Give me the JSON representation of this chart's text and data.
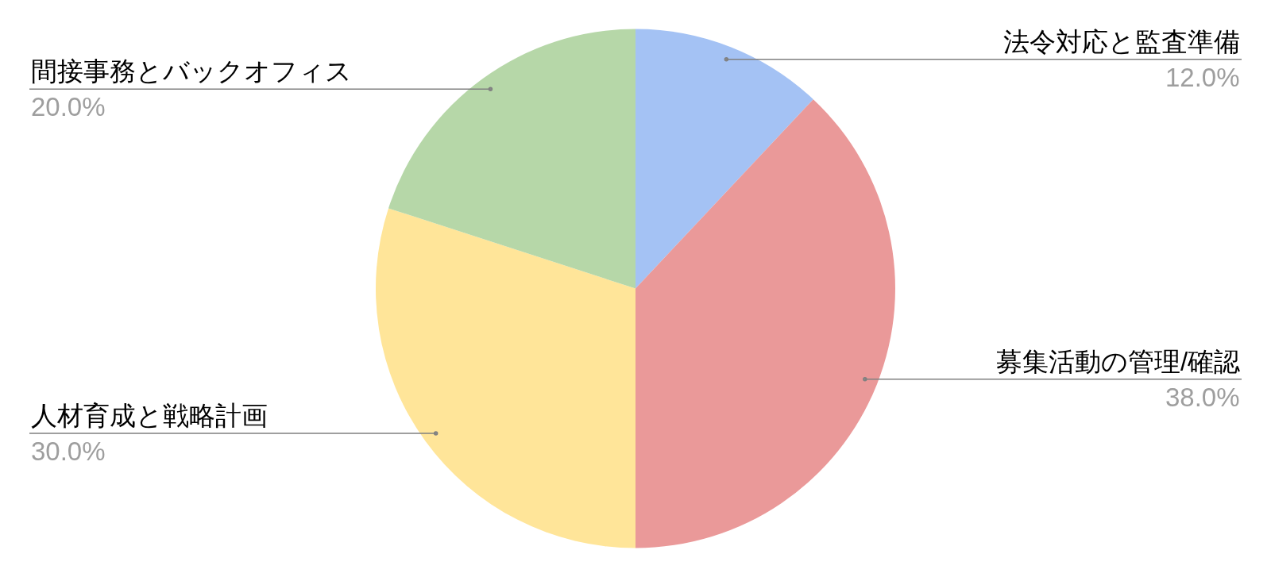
{
  "chart_data": {
    "type": "pie",
    "categories": [
      "法令対応と監査準備",
      "募集活動の管理/確認",
      "人材育成と戦略計画",
      "間接事務とバックオフィス"
    ],
    "values": [
      12,
      38,
      30,
      20
    ],
    "colors": [
      "#a4c2f4",
      "#ea9999",
      "#ffe599",
      "#b6d7a8"
    ],
    "value_labels": [
      "12.0%",
      "38.0%",
      "30.0%",
      "20.0%"
    ]
  }
}
